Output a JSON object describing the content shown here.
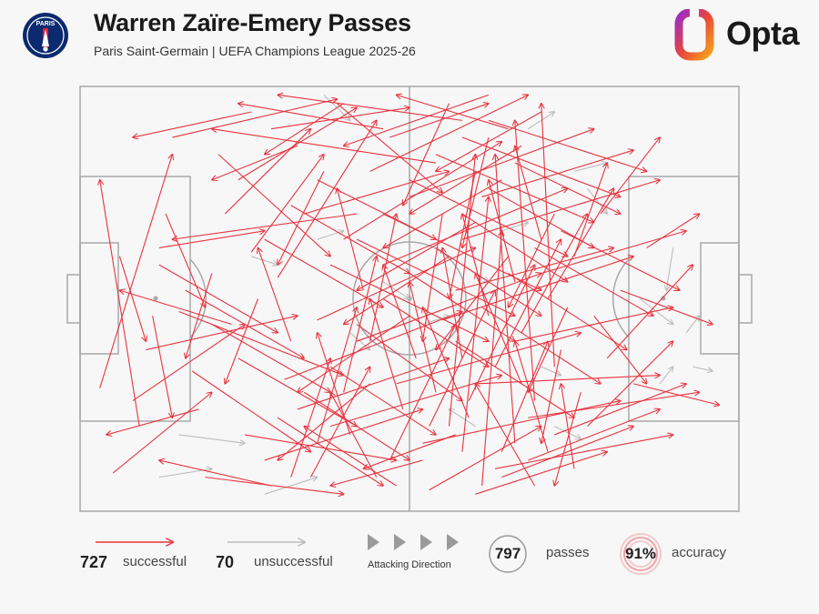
{
  "header": {
    "title": "Warren Zaïre-Emery Passes",
    "subtitle": "Paris Saint-Germain | UEFA Champions League 2025-26",
    "brand": "Opta",
    "crest_text": "PARIS"
  },
  "legend": {
    "successful_count": "727",
    "successful_label": "successful",
    "unsuccessful_count": "70",
    "unsuccessful_label": "unsuccessful",
    "attacking_label": "Attacking Direction",
    "passes_count": "797",
    "passes_label": "passes",
    "accuracy_value": "91%",
    "accuracy_label": "accuracy"
  },
  "colors": {
    "successful": "#e8333f",
    "unsuccessful": "#bcbcbc",
    "pitch_lines": "#a8a8a8",
    "crest_blue": "#0b2a6f",
    "crest_red": "#d6203a"
  },
  "chart_data": {
    "type": "scatter",
    "title": "Warren Zaïre-Emery Passes",
    "subtitle": "Paris Saint-Germain | UEFA Champions League 2025-26",
    "xlim": [
      0,
      100
    ],
    "ylim": [
      0,
      100
    ],
    "attacking_direction": "left-to-right",
    "total_passes": 797,
    "successful_count": 727,
    "unsuccessful_count": 70,
    "accuracy_pct": 91,
    "series": [
      {
        "name": "successful",
        "passes": [
          [
            3,
            29,
            14,
            84
          ],
          [
            9,
            20,
            3,
            78
          ],
          [
            5,
            9,
            20,
            28
          ],
          [
            14,
            88,
            39,
            97
          ],
          [
            21,
            84,
            38,
            60
          ],
          [
            15,
            47,
            40,
            32
          ],
          [
            10,
            38,
            33,
            46
          ],
          [
            24,
            78,
            42,
            95
          ],
          [
            22,
            70,
            35,
            90
          ],
          [
            26,
            61,
            37,
            84
          ],
          [
            30,
            55,
            45,
            92
          ],
          [
            12,
            62,
            28,
            66
          ],
          [
            8,
            26,
            25,
            44
          ],
          [
            17,
            33,
            35,
            14
          ],
          [
            28,
            12,
            52,
            24
          ],
          [
            33,
            24,
            56,
            36
          ],
          [
            36,
            45,
            60,
            62
          ],
          [
            40,
            64,
            64,
            87
          ],
          [
            44,
            80,
            68,
            98
          ],
          [
            19,
            8,
            40,
            4
          ],
          [
            25,
            18,
            48,
            12
          ],
          [
            31,
            31,
            58,
            47
          ],
          [
            38,
            20,
            64,
            32
          ],
          [
            42,
            40,
            70,
            56
          ],
          [
            46,
            58,
            74,
            76
          ],
          [
            50,
            74,
            78,
            90
          ],
          [
            48,
            30,
            76,
            42
          ],
          [
            52,
            16,
            82,
            26
          ],
          [
            55,
            45,
            84,
            60
          ],
          [
            58,
            64,
            88,
            78
          ],
          [
            34,
            70,
            56,
            80
          ],
          [
            29,
            90,
            50,
            95
          ],
          [
            47,
            88,
            62,
            96
          ],
          [
            60,
            30,
            88,
            32
          ],
          [
            63,
            10,
            90,
            18
          ],
          [
            57,
            52,
            81,
            62
          ],
          [
            61,
            74,
            84,
            85
          ],
          [
            66,
            40,
            90,
            48
          ],
          [
            68,
            22,
            94,
            28
          ],
          [
            70,
            56,
            92,
            66
          ],
          [
            53,
            5,
            70,
            20
          ],
          [
            45,
            8,
            38,
            28
          ],
          [
            39,
            96,
            55,
            75
          ],
          [
            56,
            96,
            49,
            72
          ],
          [
            62,
            88,
            58,
            62
          ],
          [
            64,
            14,
            71,
            40
          ],
          [
            59,
            22,
            52,
            48
          ],
          [
            67,
            30,
            60,
            56
          ],
          [
            72,
            70,
            65,
            48
          ],
          [
            74,
            48,
            68,
            28
          ],
          [
            65,
            60,
            54,
            38
          ],
          [
            51,
            36,
            46,
            58
          ],
          [
            43,
            52,
            39,
            76
          ],
          [
            37,
            80,
            30,
            58
          ],
          [
            32,
            40,
            27,
            62
          ],
          [
            27,
            50,
            22,
            30
          ],
          [
            20,
            56,
            16,
            36
          ],
          [
            13,
            70,
            19,
            48
          ],
          [
            11,
            46,
            14,
            22
          ],
          [
            6,
            60,
            10,
            40
          ],
          [
            35,
            8,
            44,
            34
          ],
          [
            41,
            18,
            36,
            42
          ],
          [
            49,
            24,
            44,
            50
          ],
          [
            54,
            28,
            50,
            54
          ],
          [
            58,
            36,
            55,
            62
          ],
          [
            62,
            46,
            58,
            70
          ],
          [
            66,
            54,
            62,
            78
          ],
          [
            70,
            64,
            66,
            86
          ],
          [
            73,
            38,
            70,
            16
          ],
          [
            76,
            28,
            72,
            6
          ],
          [
            71,
            14,
            66,
            40
          ],
          [
            69,
            6,
            60,
            30
          ],
          [
            75,
            60,
            80,
            82
          ],
          [
            78,
            46,
            86,
            30
          ],
          [
            80,
            36,
            93,
            58
          ],
          [
            77,
            20,
            90,
            40
          ],
          [
            79,
            70,
            88,
            88
          ],
          [
            82,
            52,
            96,
            44
          ],
          [
            84,
            30,
            97,
            25
          ],
          [
            86,
            62,
            94,
            70
          ],
          [
            44,
            30,
            30,
            12
          ],
          [
            50,
            46,
            33,
            28
          ],
          [
            56,
            60,
            40,
            44
          ],
          [
            60,
            68,
            42,
            52
          ],
          [
            64,
            78,
            46,
            62
          ],
          [
            67,
            86,
            50,
            70
          ],
          [
            70,
            94,
            54,
            80
          ],
          [
            48,
            6,
            34,
            20
          ],
          [
            52,
            12,
            38,
            6
          ],
          [
            57,
            18,
            43,
            10
          ],
          [
            40,
            96,
            28,
            84
          ],
          [
            46,
            90,
            24,
            96
          ],
          [
            33,
            86,
            20,
            78
          ],
          [
            26,
            94,
            8,
            88
          ],
          [
            23,
            44,
            6,
            52
          ],
          [
            18,
            24,
            4,
            18
          ],
          [
            29,
            6,
            12,
            12
          ],
          [
            42,
            70,
            14,
            64
          ],
          [
            54,
            82,
            20,
            90
          ],
          [
            58,
            92,
            30,
            98
          ],
          [
            62,
            98,
            40,
            86
          ],
          [
            65,
            90,
            48,
            98
          ],
          [
            38,
            58,
            62,
            40
          ],
          [
            42,
            64,
            66,
            46
          ],
          [
            46,
            70,
            70,
            52
          ],
          [
            50,
            78,
            74,
            60
          ],
          [
            54,
            84,
            78,
            68
          ],
          [
            58,
            88,
            82,
            74
          ],
          [
            62,
            92,
            86,
            80
          ],
          [
            30,
            22,
            46,
            6
          ],
          [
            34,
            28,
            50,
            12
          ],
          [
            38,
            34,
            54,
            18
          ],
          [
            42,
            44,
            58,
            26
          ],
          [
            46,
            50,
            62,
            34
          ],
          [
            50,
            56,
            66,
            40
          ],
          [
            54,
            62,
            70,
            46
          ],
          [
            58,
            70,
            74,
            54
          ],
          [
            62,
            76,
            78,
            62
          ],
          [
            66,
            82,
            82,
            70
          ],
          [
            24,
            36,
            42,
            20
          ],
          [
            20,
            44,
            38,
            28
          ],
          [
            16,
            52,
            34,
            36
          ],
          [
            12,
            58,
            30,
            42
          ],
          [
            28,
            64,
            46,
            48
          ],
          [
            32,
            72,
            50,
            56
          ],
          [
            36,
            78,
            54,
            64
          ],
          [
            60,
            4,
            80,
            14
          ],
          [
            64,
            8,
            84,
            20
          ],
          [
            68,
            12,
            88,
            24
          ],
          [
            72,
            18,
            92,
            30
          ],
          [
            57,
            40,
            75,
            22
          ],
          [
            61,
            48,
            79,
            30
          ],
          [
            65,
            56,
            83,
            38
          ],
          [
            69,
            62,
            87,
            46
          ],
          [
            73,
            66,
            91,
            52
          ],
          [
            47,
            12,
            57,
            44
          ],
          [
            53,
            20,
            63,
            52
          ],
          [
            59,
            26,
            69,
            58
          ],
          [
            63,
            34,
            73,
            64
          ],
          [
            67,
            42,
            77,
            70
          ],
          [
            71,
            50,
            81,
            76
          ],
          [
            55,
            70,
            52,
            40
          ],
          [
            60,
            80,
            56,
            50
          ],
          [
            44,
            40,
            48,
            70
          ],
          [
            40,
            28,
            45,
            60
          ],
          [
            36,
            16,
            42,
            48
          ],
          [
            32,
            8,
            38,
            36
          ],
          [
            56,
            20,
            60,
            84
          ],
          [
            58,
            14,
            62,
            74
          ],
          [
            61,
            6,
            64,
            66
          ],
          [
            66,
            16,
            63,
            84
          ],
          [
            69,
            26,
            66,
            92
          ],
          [
            72,
            34,
            70,
            96
          ],
          [
            75,
            10,
            73,
            30
          ]
        ]
      },
      {
        "name": "unsuccessful",
        "passes": [
          [
            37,
            98,
            41,
            92
          ],
          [
            68,
            90,
            72,
            94
          ],
          [
            77,
            76,
            80,
            70
          ],
          [
            90,
            62,
            89,
            52
          ],
          [
            85,
            50,
            90,
            44
          ],
          [
            93,
            34,
            96,
            33
          ],
          [
            88,
            30,
            90,
            34
          ],
          [
            92,
            42,
            94,
            46
          ],
          [
            70,
            34,
            73,
            32
          ],
          [
            72,
            20,
            76,
            17
          ],
          [
            12,
            8,
            20,
            10
          ],
          [
            15,
            18,
            25,
            16
          ],
          [
            46,
            54,
            50,
            50
          ],
          [
            52,
            44,
            56,
            46
          ],
          [
            60,
            20,
            56,
            24
          ],
          [
            36,
            64,
            40,
            66
          ],
          [
            26,
            60,
            30,
            58
          ],
          [
            41,
            42,
            44,
            38
          ],
          [
            75,
            80,
            80,
            82
          ],
          [
            28,
            4,
            36,
            8
          ],
          [
            64,
            66,
            68,
            68
          ],
          [
            58,
            58,
            62,
            54
          ]
        ]
      }
    ]
  }
}
